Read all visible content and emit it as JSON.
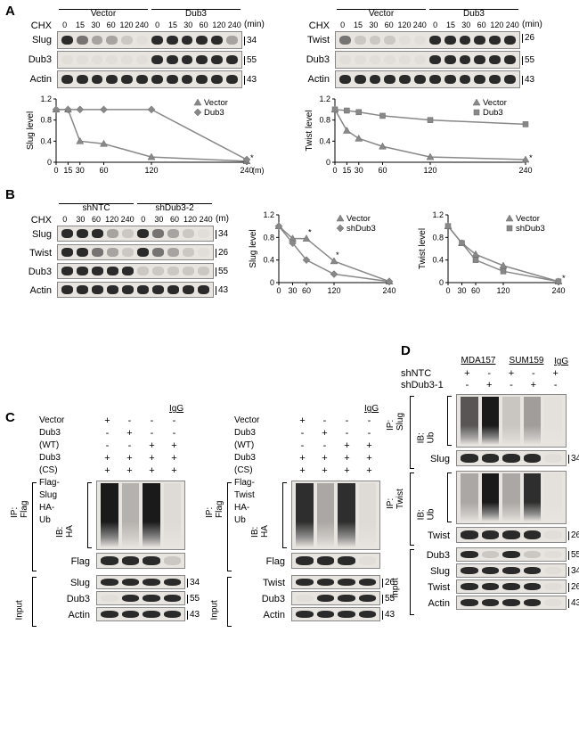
{
  "panels": {
    "A": "A",
    "B": "B",
    "C": "C",
    "D": "D"
  },
  "A": {
    "chx": "CHX",
    "vector": "Vector",
    "dub3": "Dub3",
    "times": [
      "0",
      "15",
      "30",
      "60",
      "120",
      "240"
    ],
    "min": "(min)",
    "rows_left": [
      "Slug",
      "Dub3",
      "Actin"
    ],
    "mw_left": [
      "34",
      "55",
      "43"
    ],
    "rows_right": [
      "Twist",
      "Dub3",
      "Actin"
    ],
    "mw_right": [
      "26",
      "55",
      "43"
    ],
    "chart_left": {
      "ylabel": "Slug level",
      "xlabel_suffix": "(m)",
      "xticks": [
        "0",
        "15",
        "30",
        "60",
        "120",
        "240"
      ],
      "yticks": [
        "0",
        "0.4",
        "0.8",
        "1.2"
      ],
      "legend": [
        "Vector",
        "Dub3"
      ],
      "series_vector": [
        [
          0,
          1
        ],
        [
          15,
          1
        ],
        [
          30,
          0.4
        ],
        [
          60,
          0.35
        ],
        [
          120,
          0.1
        ],
        [
          240,
          0.02
        ]
      ],
      "series_dub3": [
        [
          0,
          1
        ],
        [
          15,
          1
        ],
        [
          30,
          1
        ],
        [
          60,
          1
        ],
        [
          120,
          1
        ],
        [
          240,
          0.05
        ]
      ],
      "star": "*"
    },
    "chart_right": {
      "ylabel": "Twist level",
      "xticks": [
        "0",
        "15",
        "30",
        "60",
        "120",
        "240"
      ],
      "yticks": [
        "0",
        "0.4",
        "0.8",
        "1.2"
      ],
      "legend": [
        "Vector",
        "Dub3"
      ],
      "series_vector": [
        [
          0,
          1
        ],
        [
          15,
          0.6
        ],
        [
          30,
          0.45
        ],
        [
          60,
          0.3
        ],
        [
          120,
          0.1
        ],
        [
          240,
          0.05
        ]
      ],
      "series_dub3": [
        [
          0,
          1
        ],
        [
          15,
          0.98
        ],
        [
          30,
          0.95
        ],
        [
          60,
          0.88
        ],
        [
          120,
          0.8
        ],
        [
          240,
          0.72
        ]
      ],
      "star": "*"
    }
  },
  "B": {
    "chx": "CHX",
    "shntc": "shNTC",
    "shdub3": "shDub3-2",
    "times": [
      "0",
      "30",
      "60",
      "120",
      "240"
    ],
    "m": "(m)",
    "rows": [
      "Slug",
      "Twist",
      "Dub3",
      "Actin"
    ],
    "mw": [
      "34",
      "26",
      "55",
      "43"
    ],
    "chart1": {
      "ylabel": "Slug level",
      "legend": [
        "Vector",
        "shDub3"
      ],
      "xticks": [
        "0",
        "30",
        "60",
        "120",
        "240"
      ],
      "yticks": [
        "0",
        "0.4",
        "0.8",
        "1.2"
      ],
      "series_vector": [
        [
          0,
          1
        ],
        [
          30,
          0.78
        ],
        [
          60,
          0.78
        ],
        [
          120,
          0.38
        ],
        [
          240,
          0.02
        ]
      ],
      "series_shdub3": [
        [
          0,
          1
        ],
        [
          30,
          0.7
        ],
        [
          60,
          0.4
        ],
        [
          120,
          0.15
        ],
        [
          240,
          0.02
        ]
      ],
      "stars": [
        "*",
        "*"
      ]
    },
    "chart2": {
      "ylabel": "Twist level",
      "legend": [
        "Vector",
        "shDub3"
      ],
      "xticks": [
        "0",
        "30",
        "60",
        "120",
        "240"
      ],
      "yticks": [
        "0",
        "0.4",
        "0.8",
        "1.2"
      ],
      "series_vector": [
        [
          0,
          1
        ],
        [
          30,
          0.7
        ],
        [
          60,
          0.5
        ],
        [
          120,
          0.3
        ],
        [
          240,
          0.02
        ]
      ],
      "series_shdub3": [
        [
          0,
          1
        ],
        [
          30,
          0.7
        ],
        [
          60,
          0.4
        ],
        [
          120,
          0.2
        ],
        [
          240,
          0.02
        ]
      ],
      "star": "*"
    }
  },
  "C": {
    "left": {
      "conds": [
        "Vector",
        "Dub3 (WT)",
        "Dub3 (CS)",
        "Flag-Slug",
        "HA-Ub"
      ],
      "cols": [
        "+\n-\n-\n+\n+",
        "-\n+\n-\n+\n+",
        "-\n-\n+\n+\n+",
        "-\n-\n+\n+\n+"
      ],
      "ip": "IP: Flag",
      "ib": "IB: HA",
      "flag": "Flag",
      "input": "Input",
      "input_rows": [
        "Slug",
        "Dub3",
        "Actin"
      ],
      "mw": [
        "34",
        "55",
        "43"
      ]
    },
    "right": {
      "conds": [
        "Vector",
        "Dub3 (WT)",
        "Dub3 (CS)",
        "Flag-Twist",
        "HA-Ub"
      ],
      "ip": "IP: Flag",
      "ib": "IB: HA",
      "flag": "Flag",
      "input": "Input",
      "input_rows": [
        "Twist",
        "Dub3",
        "Actin"
      ],
      "mw": [
        "26",
        "55",
        "43"
      ]
    },
    "igg": "IgG"
  },
  "D": {
    "cells": [
      "MDA157",
      "SUM159"
    ],
    "shntc": "shNTC",
    "shdub3": "shDub3-1",
    "igg": "IgG",
    "ip_slug": "IP: Slug",
    "ip_twist": "IP: Twist",
    "ib_ub": "IB: Ub",
    "slug": "Slug",
    "twist": "Twist",
    "input": "Input",
    "input_rows": [
      "Dub3",
      "Slug",
      "Twist",
      "Actin"
    ],
    "mw": [
      "34",
      "26",
      "55",
      "34",
      "26",
      "43"
    ]
  },
  "colors": {
    "line": "#888888",
    "bg": "#ffffff",
    "blot": "#e8e4df"
  }
}
